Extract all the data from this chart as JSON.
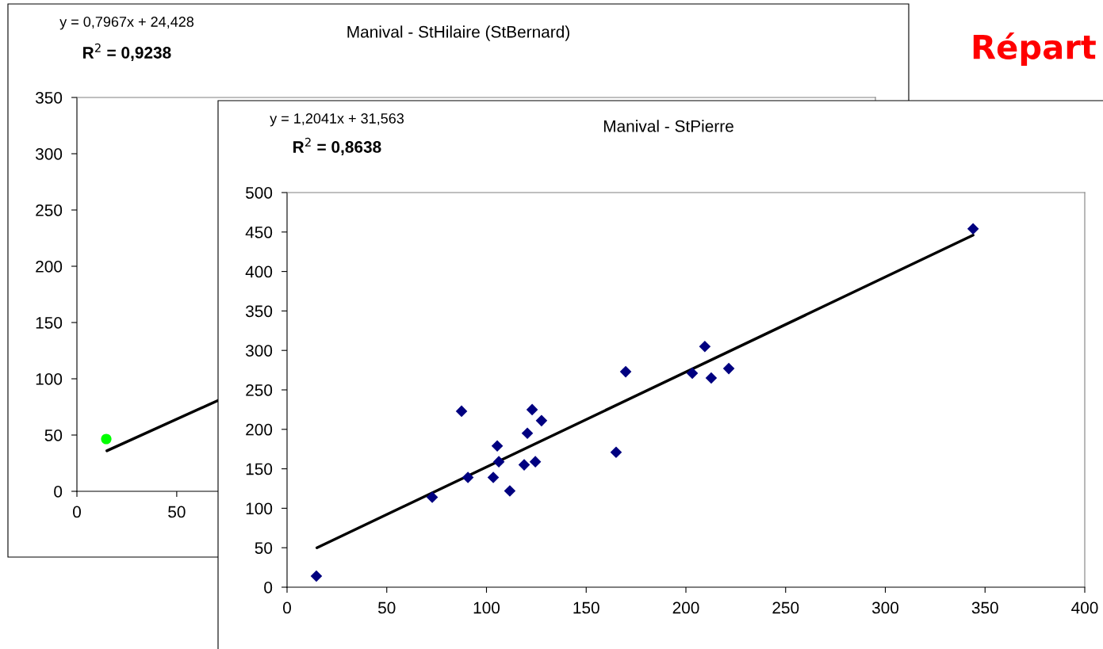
{
  "chart_data": [
    {
      "type": "scatter",
      "title": "Manival - StHilaire (StBernard)",
      "annotations": [
        "y = 0,7967x + 24,428",
        "R$^{2}$ = 0,9238",
        "Répart"
      ],
      "xlim": [
        0,
        400
      ],
      "xticks": [
        0,
        50
      ],
      "ylim": [
        0,
        350
      ],
      "yticks": [
        0,
        50,
        100,
        150,
        200,
        250,
        300,
        350
      ],
      "grid": false,
      "legend": false,
      "series": [
        {
          "color": "#00ff00",
          "marker": "circle",
          "x": [
            14.7
          ],
          "values": [
            46.5
          ]
        },
        {
          "type": "line",
          "color": "#000000",
          "marker": "none",
          "line_style": "solid",
          "x": [
            15,
            71
          ],
          "values": [
            36,
            81
          ]
        }
      ]
    },
    {
      "type": "scatter",
      "title": "Manival - StPierre",
      "annotations": [
        "y = 1,2041x + 31,563",
        "R$^{2}$ = 0,8638"
      ],
      "xlim": [
        0,
        400
      ],
      "xticks": [
        0,
        50,
        100,
        150,
        200,
        250,
        300,
        350,
        400
      ],
      "ylim": [
        0,
        500
      ],
      "yticks": [
        0,
        50,
        100,
        150,
        200,
        250,
        300,
        350,
        400,
        450,
        500
      ],
      "grid": false,
      "legend": false,
      "series": [
        {
          "color": "#000080",
          "marker": "diamond",
          "x": [
            14.7,
            72.8,
            87.5,
            90.7,
            103.4,
            105.4,
            106.2,
            111.7,
            118.9,
            120.5,
            122.9,
            124.5,
            127.6,
            165,
            169.8,
            203.2,
            209.5,
            212.7,
            221.5,
            344
          ],
          "values": [
            14,
            114,
            223,
            139,
            139,
            179,
            159,
            122,
            155,
            195,
            225,
            159,
            211,
            171,
            273,
            271,
            305,
            265,
            277,
            454
          ]
        },
        {
          "type": "line",
          "color": "#000000",
          "marker": "none",
          "line_style": "solid",
          "x": [
            15,
            344
          ],
          "values": [
            50,
            446
          ]
        }
      ]
    }
  ]
}
